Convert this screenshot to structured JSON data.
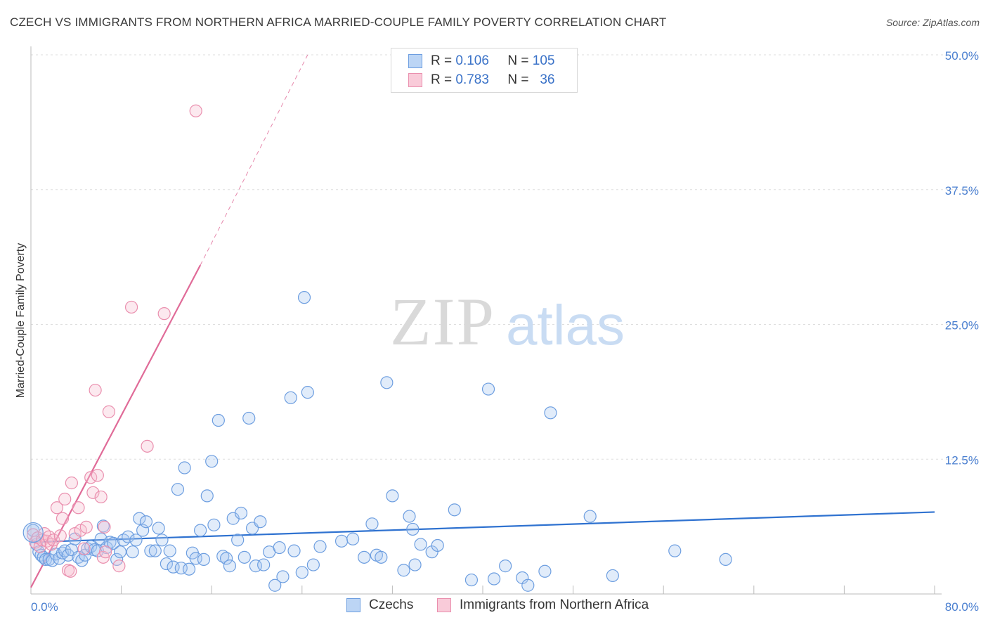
{
  "title": "CZECH VS IMMIGRANTS FROM NORTHERN AFRICA MARRIED-COUPLE FAMILY POVERTY CORRELATION CHART",
  "source": "Source: ZipAtlas.com",
  "watermark": {
    "zip": "ZIP",
    "atlas": "atlas"
  },
  "legend": {
    "rows": [
      {
        "r_label": "R =",
        "r_value": "0.106",
        "n_label": "N =",
        "n_value": "105",
        "color": "#a9c8f0",
        "stroke": "#6d9ee0"
      },
      {
        "r_label": "R =",
        "r_value": "0.783",
        "n_label": "N =",
        "n_value": "36",
        "color": "#f7bfd0",
        "stroke": "#ea8fae"
      }
    ]
  },
  "bottom_legend": [
    {
      "label": "Czechs",
      "color": "#bcd5f5",
      "stroke": "#6d9ee0"
    },
    {
      "label": "Immigrants from Northern Africa",
      "color": "#f9cbd9",
      "stroke": "#ea8fae"
    }
  ],
  "chart_data": {
    "type": "scatter",
    "title": "CZECH VS IMMIGRANTS FROM NORTHERN AFRICA MARRIED-COUPLE FAMILY POVERTY CORRELATION CHART",
    "xlabel": "",
    "ylabel": "Married-Couple Family Poverty",
    "xlim": [
      0,
      80
    ],
    "ylim": [
      0,
      50
    ],
    "x_tick_labels": [
      "0.0%",
      "80.0%"
    ],
    "y_ticks": [
      12.5,
      25.0,
      37.5,
      50.0
    ],
    "y_tick_labels": [
      "12.5%",
      "25.0%",
      "37.5%",
      "50.0%"
    ],
    "grid": true,
    "legend_position": "top-center",
    "series": [
      {
        "name": "Czechs",
        "color": "#6d9ee0",
        "trend": {
          "x": [
            0,
            80
          ],
          "y": [
            4.8,
            7.6
          ],
          "color": "#2f72d0"
        },
        "points": [
          [
            0.2,
            5.9
          ],
          [
            0.5,
            4.6
          ],
          [
            0.7,
            3.9
          ],
          [
            0.9,
            3.6
          ],
          [
            1.1,
            3.4
          ],
          [
            1.3,
            3.2
          ],
          [
            1.6,
            3.2
          ],
          [
            1.9,
            3.1
          ],
          [
            2.2,
            3.7
          ],
          [
            2.5,
            3.3
          ],
          [
            2.8,
            3.8
          ],
          [
            3.0,
            4.0
          ],
          [
            3.3,
            3.6
          ],
          [
            3.6,
            4.1
          ],
          [
            3.9,
            5.1
          ],
          [
            4.2,
            3.4
          ],
          [
            4.5,
            3.1
          ],
          [
            4.8,
            3.6
          ],
          [
            5.0,
            4.2
          ],
          [
            5.3,
            4.4
          ],
          [
            5.6,
            4.1
          ],
          [
            5.9,
            4.0
          ],
          [
            6.2,
            5.1
          ],
          [
            6.4,
            6.3
          ],
          [
            6.7,
            4.3
          ],
          [
            7.0,
            4.8
          ],
          [
            7.3,
            4.7
          ],
          [
            7.6,
            3.2
          ],
          [
            7.9,
            3.9
          ],
          [
            8.2,
            5.0
          ],
          [
            8.6,
            5.3
          ],
          [
            9.0,
            3.9
          ],
          [
            9.3,
            5.0
          ],
          [
            9.6,
            7.0
          ],
          [
            9.9,
            5.9
          ],
          [
            10.2,
            6.7
          ],
          [
            10.6,
            4.0
          ],
          [
            11.0,
            4.0
          ],
          [
            11.3,
            6.1
          ],
          [
            11.6,
            5.0
          ],
          [
            12.0,
            2.8
          ],
          [
            12.3,
            4.0
          ],
          [
            12.6,
            2.5
          ],
          [
            13.0,
            9.7
          ],
          [
            13.3,
            2.4
          ],
          [
            13.6,
            11.7
          ],
          [
            14.0,
            2.3
          ],
          [
            14.3,
            3.8
          ],
          [
            14.6,
            3.3
          ],
          [
            15.0,
            5.9
          ],
          [
            15.3,
            3.2
          ],
          [
            15.6,
            9.1
          ],
          [
            16.0,
            12.3
          ],
          [
            16.2,
            6.4
          ],
          [
            16.6,
            16.1
          ],
          [
            17.0,
            3.5
          ],
          [
            17.3,
            3.3
          ],
          [
            17.6,
            2.6
          ],
          [
            17.9,
            7.0
          ],
          [
            18.3,
            5.0
          ],
          [
            18.6,
            7.5
          ],
          [
            18.9,
            3.4
          ],
          [
            19.3,
            16.3
          ],
          [
            19.6,
            6.1
          ],
          [
            19.9,
            2.6
          ],
          [
            20.3,
            6.7
          ],
          [
            20.6,
            2.7
          ],
          [
            21.1,
            3.9
          ],
          [
            21.6,
            0.8
          ],
          [
            22.0,
            4.3
          ],
          [
            22.3,
            1.6
          ],
          [
            23.0,
            18.2
          ],
          [
            23.3,
            4.0
          ],
          [
            24.0,
            2.0
          ],
          [
            24.5,
            18.7
          ],
          [
            25.0,
            2.7
          ],
          [
            25.6,
            4.4
          ],
          [
            24.2,
            27.5
          ],
          [
            27.5,
            4.9
          ],
          [
            28.5,
            5.1
          ],
          [
            29.5,
            3.4
          ],
          [
            30.2,
            6.5
          ],
          [
            30.6,
            3.6
          ],
          [
            31.0,
            3.4
          ],
          [
            31.5,
            19.6
          ],
          [
            32.0,
            9.1
          ],
          [
            33.0,
            2.2
          ],
          [
            33.5,
            7.2
          ],
          [
            33.8,
            6.0
          ],
          [
            34.0,
            2.7
          ],
          [
            34.5,
            4.6
          ],
          [
            35.5,
            3.9
          ],
          [
            36.0,
            4.5
          ],
          [
            37.5,
            7.8
          ],
          [
            39.0,
            1.3
          ],
          [
            40.5,
            19.0
          ],
          [
            41.0,
            1.4
          ],
          [
            42.0,
            2.6
          ],
          [
            43.5,
            1.5
          ],
          [
            44.0,
            0.8
          ],
          [
            45.5,
            2.1
          ],
          [
            46.0,
            16.8
          ],
          [
            49.5,
            7.2
          ],
          [
            51.5,
            1.7
          ],
          [
            57.0,
            4.0
          ],
          [
            61.5,
            3.2
          ]
        ]
      },
      {
        "name": "Immigrants from Northern Africa",
        "color": "#ea8fae",
        "trend": {
          "x": [
            0,
            15.0
          ],
          "y": [
            0.6,
            30.5
          ],
          "dash_to": [
            24.5,
            50.0
          ],
          "color": "#e06b98"
        },
        "points": [
          [
            0.2,
            5.5
          ],
          [
            0.4,
            4.8
          ],
          [
            0.6,
            5.2
          ],
          [
            0.8,
            4.4
          ],
          [
            1.0,
            5.0
          ],
          [
            1.2,
            5.6
          ],
          [
            1.4,
            4.9
          ],
          [
            1.6,
            5.3
          ],
          [
            1.8,
            4.6
          ],
          [
            2.0,
            5.0
          ],
          [
            2.3,
            8.0
          ],
          [
            2.6,
            5.4
          ],
          [
            2.8,
            7.0
          ],
          [
            3.0,
            8.8
          ],
          [
            3.3,
            2.2
          ],
          [
            3.5,
            2.1
          ],
          [
            3.6,
            10.3
          ],
          [
            3.9,
            5.6
          ],
          [
            4.2,
            8.0
          ],
          [
            4.4,
            5.9
          ],
          [
            4.7,
            4.2
          ],
          [
            4.9,
            6.2
          ],
          [
            5.3,
            10.8
          ],
          [
            5.5,
            9.4
          ],
          [
            5.7,
            18.9
          ],
          [
            5.9,
            11.0
          ],
          [
            6.2,
            9.0
          ],
          [
            6.4,
            3.4
          ],
          [
            6.5,
            6.2
          ],
          [
            6.6,
            3.9
          ],
          [
            6.9,
            16.9
          ],
          [
            7.8,
            2.6
          ],
          [
            8.9,
            26.6
          ],
          [
            10.3,
            13.7
          ],
          [
            11.8,
            26.0
          ],
          [
            14.6,
            44.8
          ]
        ]
      }
    ]
  }
}
